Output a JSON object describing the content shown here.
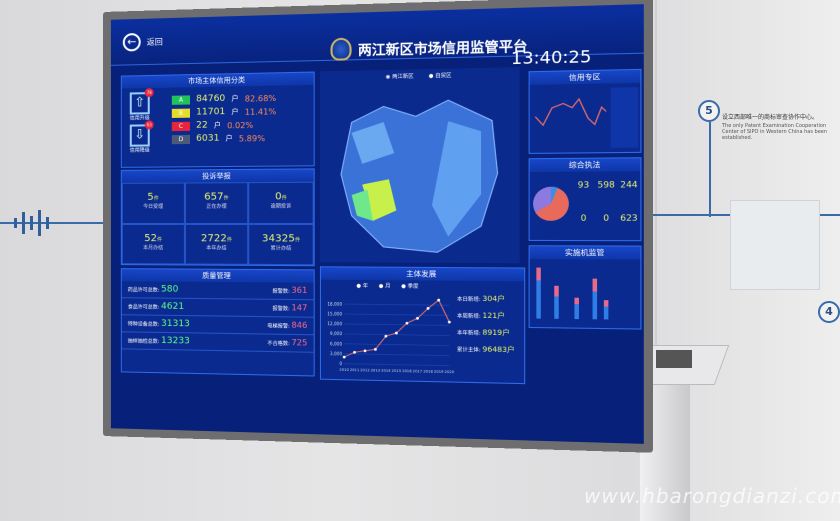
{
  "dashboard": {
    "back_label": "返回",
    "title": "两江新区市场信用监管平台",
    "time": "13:40:25",
    "credit": {
      "title": "市场主体信用分类",
      "upgrade": {
        "label": "信用升级",
        "count": "78"
      },
      "downgrade": {
        "label": "信用降级",
        "count": "63"
      },
      "grades": [
        {
          "grade": "A",
          "count": "84760",
          "unit": "户",
          "pct": "82.68%",
          "color": "#22c25a"
        },
        {
          "grade": "B",
          "count": "11701",
          "unit": "户",
          "pct": "11.41%",
          "color": "#e8dc2a"
        },
        {
          "grade": "C",
          "count": "22",
          "unit": "户",
          "pct": "0.02%",
          "color": "#e8243c"
        },
        {
          "grade": "D",
          "count": "6031",
          "unit": "户",
          "pct": "5.89%",
          "color": "#4a5a78"
        }
      ]
    },
    "complaints": {
      "title": "投诉举报",
      "unit": "件",
      "items": [
        {
          "value": "5",
          "label": "今日受理"
        },
        {
          "value": "657",
          "label": "正在办理"
        },
        {
          "value": "0",
          "label": "逾期投诉"
        },
        {
          "value": "52",
          "label": "本月办结"
        },
        {
          "value": "2722",
          "label": "本年办结"
        },
        {
          "value": "34325",
          "label": "累计办结"
        }
      ]
    },
    "quality": {
      "title": "质量管理",
      "rows": [
        {
          "left_label": "药品许可总数:",
          "left_value": "580",
          "right_label": "报警数:",
          "right_value": "361"
        },
        {
          "left_label": "食品许可总数:",
          "left_value": "4621",
          "right_label": "报警数:",
          "right_value": "147"
        },
        {
          "left_label": "特种设备总数:",
          "left_value": "31313",
          "right_label": "电梯报警:",
          "right_value": "846"
        },
        {
          "left_label": "抽样抽检总数:",
          "left_value": "13233",
          "right_label": "不合格数:",
          "right_value": "725"
        }
      ]
    },
    "map": {
      "options": [
        "两江新区",
        "自贸区"
      ]
    },
    "growth": {
      "title": "主体发展",
      "legend": [
        "年",
        "月",
        "季度"
      ],
      "stats": [
        {
          "label": "本日新增:",
          "value": "304户"
        },
        {
          "label": "本周新增:",
          "value": "121户"
        },
        {
          "label": "本年新增:",
          "value": "8919户"
        },
        {
          "label": "累计主体:",
          "value": "96483户"
        }
      ]
    },
    "right_panels": {
      "top_title": "信用专区",
      "mid_title": "综合执法",
      "bottom_title": "实施机监管",
      "enforce": [
        {
          "value": "93"
        },
        {
          "value": "598"
        },
        {
          "value": "244"
        },
        {
          "value": "0"
        },
        {
          "value": "0"
        },
        {
          "value": "623"
        }
      ]
    }
  },
  "chart_data": {
    "type": "line",
    "title": "主体发展",
    "categories": [
      "2010",
      "2011",
      "2012",
      "2013",
      "2014",
      "2015",
      "2016",
      "2017",
      "2018",
      "2019",
      "2020"
    ],
    "values": [
      2000,
      3500,
      4000,
      4500,
      8500,
      9500,
      12500,
      14000,
      17000,
      19500,
      13000
    ],
    "ylim": [
      0,
      20000
    ],
    "yticks": [
      "0",
      "3,000",
      "6,000",
      "9,000",
      "12,000",
      "15,000",
      "18,000"
    ]
  },
  "wall": {
    "step": "5",
    "step2": "4",
    "text_cn": "设立西部唯一的商标审查协作中心。",
    "text_en": "The only Patent Examination Cooperation Center of SIPO in Western China has been established.",
    "watermark": "www.hbarongdianzi.com"
  },
  "colors": {
    "screen_bg": "#07207a",
    "accent": "#e6f36a",
    "line": "#e06a6a"
  }
}
